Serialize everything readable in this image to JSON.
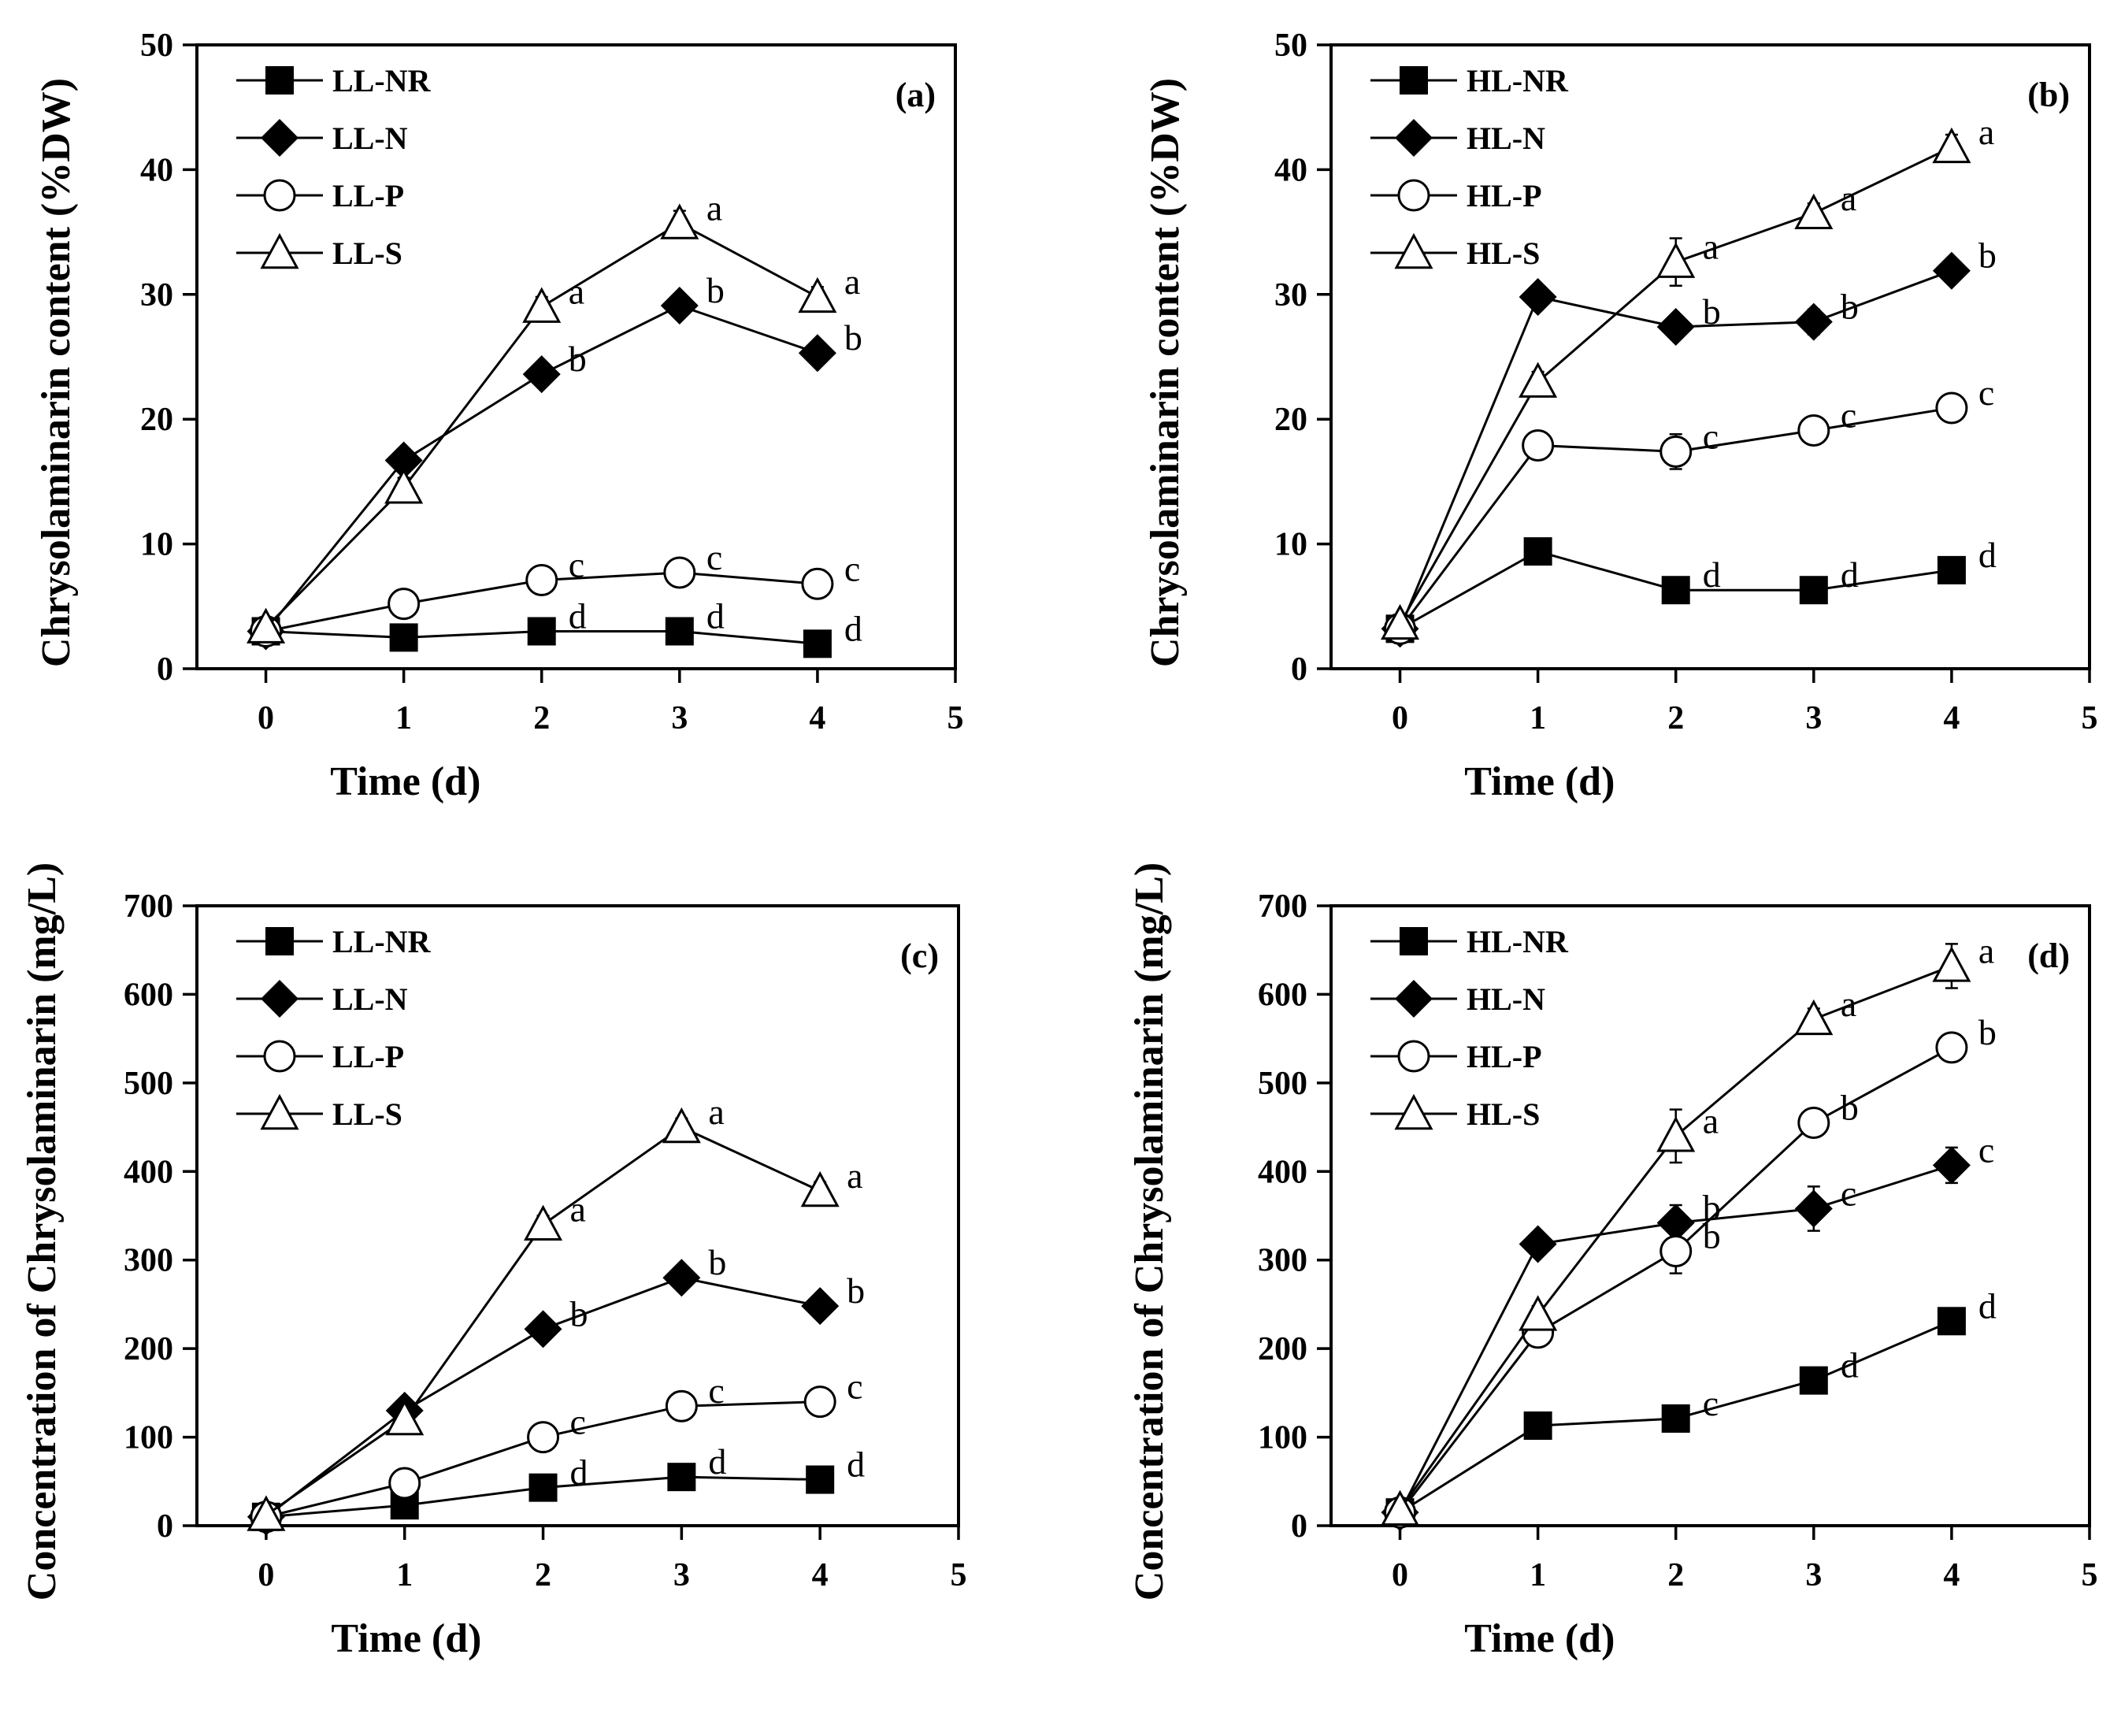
{
  "chart_data": [
    {
      "type": "line",
      "panel": "(a)",
      "xlabel": "Time (d)",
      "ylabel": "Chrysolaminarin content (%DW)",
      "xlim": [
        -0.5,
        5
      ],
      "ylim": [
        0,
        50
      ],
      "xticks": [
        0,
        1,
        2,
        3,
        4,
        5
      ],
      "yticks": [
        0,
        10,
        20,
        30,
        40,
        50
      ],
      "legend": "top-left",
      "x": [
        0,
        1,
        2,
        3,
        4
      ],
      "series": [
        {
          "name": "LL-NR",
          "marker": "filled-square",
          "values": [
            3.0,
            2.5,
            3.0,
            3.0,
            2.0
          ],
          "errors": [
            0.2,
            0.3,
            0.3,
            0.3,
            0.3
          ],
          "letters": [
            "",
            "",
            "d",
            "d",
            "d"
          ]
        },
        {
          "name": "LL-N",
          "marker": "filled-diamond",
          "values": [
            3.0,
            16.7,
            23.6,
            29.1,
            25.3
          ],
          "errors": [
            0.3,
            0.5,
            0.5,
            0.8,
            0.6
          ],
          "letters": [
            "",
            "",
            "b",
            "b",
            "b"
          ]
        },
        {
          "name": "LL-P",
          "marker": "open-circle",
          "values": [
            3.0,
            5.2,
            7.1,
            7.7,
            6.8
          ],
          "errors": [
            0.3,
            0.6,
            0.7,
            0.8,
            0.8
          ],
          "letters": [
            "",
            "",
            "c",
            "c",
            "c"
          ]
        },
        {
          "name": "LL-S",
          "marker": "open-triangle",
          "values": [
            3.3,
            14.5,
            29.0,
            35.7,
            29.8
          ],
          "errors": [
            0.3,
            0.8,
            0.8,
            1.0,
            0.8
          ],
          "letters": [
            "",
            "",
            "a",
            "a",
            "a"
          ]
        }
      ]
    },
    {
      "type": "line",
      "panel": "(b)",
      "xlabel": "Time (d)",
      "ylabel": "Chrysolaminarin content (%DW)",
      "xlim": [
        -0.5,
        5
      ],
      "ylim": [
        0,
        50
      ],
      "xticks": [
        0,
        1,
        2,
        3,
        4,
        5
      ],
      "yticks": [
        0,
        10,
        20,
        30,
        40,
        50
      ],
      "legend": "top-left",
      "x": [
        0,
        1,
        2,
        3,
        4
      ],
      "series": [
        {
          "name": "HL-NR",
          "marker": "filled-square",
          "values": [
            3.2,
            9.4,
            6.3,
            6.3,
            7.9
          ],
          "errors": [
            0.3,
            0.4,
            0.4,
            0.4,
            0.4
          ],
          "letters": [
            "",
            "",
            "d",
            "d",
            "d"
          ]
        },
        {
          "name": "HL-N",
          "marker": "filled-diamond",
          "values": [
            3.2,
            29.8,
            27.4,
            27.8,
            31.9
          ],
          "errors": [
            0.3,
            0.5,
            0.6,
            1.0,
            0.6
          ],
          "letters": [
            "",
            "",
            "b",
            "b",
            "b"
          ]
        },
        {
          "name": "HL-P",
          "marker": "open-circle",
          "values": [
            3.2,
            17.9,
            17.4,
            19.1,
            20.9
          ],
          "errors": [
            0.3,
            0.4,
            1.4,
            0.7,
            0.9
          ],
          "letters": [
            "",
            "",
            "c",
            "c",
            "c"
          ]
        },
        {
          "name": "HL-S",
          "marker": "open-triangle",
          "values": [
            3.6,
            23.0,
            32.6,
            36.5,
            41.8
          ],
          "errors": [
            0.3,
            0.8,
            1.9,
            0.8,
            1.0
          ],
          "letters": [
            "",
            "",
            "a",
            "a",
            "a"
          ]
        }
      ]
    },
    {
      "type": "line",
      "panel": "(c)",
      "xlabel": "Time (d)",
      "ylabel": "Concentration of Chrysolaminarin (mg/L)",
      "xlim": [
        -0.5,
        5
      ],
      "ylim": [
        0,
        700
      ],
      "xticks": [
        0,
        1,
        2,
        3,
        4,
        5
      ],
      "yticks": [
        0,
        100,
        200,
        300,
        400,
        500,
        600,
        700
      ],
      "legend": "top-left",
      "x": [
        0,
        1,
        2,
        3,
        4
      ],
      "series": [
        {
          "name": "LL-NR",
          "marker": "filled-square",
          "values": [
            10,
            23,
            43,
            55,
            52
          ],
          "errors": [
            3,
            4,
            5,
            6,
            14
          ],
          "letters": [
            "",
            "",
            "d",
            "d",
            "d"
          ]
        },
        {
          "name": "LL-N",
          "marker": "filled-diamond",
          "values": [
            10,
            130,
            222,
            280,
            248
          ],
          "errors": [
            3,
            5,
            8,
            8,
            6
          ],
          "letters": [
            "",
            "",
            "b",
            "b",
            "b"
          ]
        },
        {
          "name": "LL-P",
          "marker": "open-circle",
          "values": [
            10,
            48,
            100,
            135,
            140
          ],
          "errors": [
            3,
            12,
            10,
            12,
            14
          ],
          "letters": [
            "",
            "",
            "c",
            "c",
            "c"
          ]
        },
        {
          "name": "LL-S",
          "marker": "open-triangle",
          "values": [
            12,
            120,
            340,
            450,
            378
          ],
          "errors": [
            3,
            10,
            10,
            10,
            10
          ],
          "letters": [
            "",
            "",
            "a",
            "a",
            "a"
          ]
        }
      ]
    },
    {
      "type": "line",
      "panel": "(d)",
      "xlabel": "Time (d)",
      "ylabel": "Concentration of Chrysolaminarin (mg/L)",
      "xlim": [
        -0.5,
        5
      ],
      "ylim": [
        0,
        700
      ],
      "xticks": [
        0,
        1,
        2,
        3,
        4,
        5
      ],
      "yticks": [
        0,
        100,
        200,
        300,
        400,
        500,
        600,
        700
      ],
      "legend": "top-left",
      "x": [
        0,
        1,
        2,
        3,
        4
      ],
      "series": [
        {
          "name": "HL-NR",
          "marker": "filled-square",
          "values": [
            15,
            113,
            121,
            164,
            231
          ],
          "errors": [
            3,
            6,
            6,
            8,
            8
          ],
          "letters": [
            "",
            "",
            "c",
            "d",
            "d"
          ]
        },
        {
          "name": "HL-N",
          "marker": "filled-diamond",
          "values": [
            15,
            318,
            342,
            358,
            407
          ],
          "errors": [
            3,
            8,
            20,
            25,
            20
          ],
          "letters": [
            "",
            "",
            "b",
            "c",
            "c"
          ]
        },
        {
          "name": "HL-P",
          "marker": "open-circle",
          "values": [
            15,
            218,
            310,
            455,
            540
          ],
          "errors": [
            3,
            10,
            25,
            12,
            12
          ],
          "letters": [
            "",
            "",
            "b",
            "b",
            "b"
          ]
        },
        {
          "name": "HL-S",
          "marker": "open-triangle",
          "values": [
            18,
            238,
            440,
            572,
            632
          ],
          "errors": [
            3,
            10,
            30,
            12,
            25
          ],
          "letters": [
            "",
            "",
            "a",
            "a",
            "a"
          ]
        }
      ]
    }
  ]
}
